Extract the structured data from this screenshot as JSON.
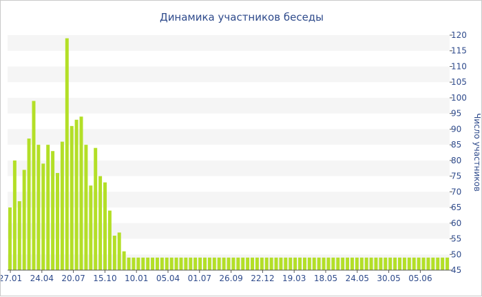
{
  "chart_data": {
    "type": "bar",
    "title": "Динамика участников беседы",
    "ylabel": "Число участников",
    "ylim": [
      45,
      120
    ],
    "yticks": [
      45,
      50,
      55,
      60,
      65,
      70,
      75,
      80,
      85,
      90,
      95,
      100,
      105,
      110,
      115,
      120
    ],
    "x_tick_labels": [
      "27.01",
      "24.04",
      "20.07",
      "15.10",
      "10.01",
      "05.04",
      "01.07",
      "26.09",
      "22.12",
      "19.03",
      "18.05",
      "24.05",
      "30.05",
      "05.06"
    ],
    "grid": "alternating horizontal bands",
    "color": "#b3df27",
    "values": [
      65,
      80,
      67,
      77,
      87,
      99,
      85,
      79,
      85,
      83,
      76,
      86,
      119,
      91,
      93,
      94,
      85,
      72,
      84,
      75,
      73,
      64,
      56,
      57,
      51,
      49,
      49,
      49,
      49,
      49,
      49,
      49,
      49,
      49,
      49,
      49,
      49,
      49,
      49,
      49,
      49,
      49,
      49,
      49,
      49,
      49,
      49,
      49,
      49,
      49,
      49,
      49,
      49,
      49,
      49,
      49,
      49,
      49,
      49,
      49,
      49,
      49,
      49,
      49,
      49,
      49,
      49,
      49,
      49,
      49,
      49,
      49,
      49,
      49,
      49,
      49,
      49,
      49,
      49,
      49,
      49,
      49,
      49,
      49,
      49,
      49,
      49,
      49,
      49,
      49,
      49,
      49,
      49
    ]
  }
}
